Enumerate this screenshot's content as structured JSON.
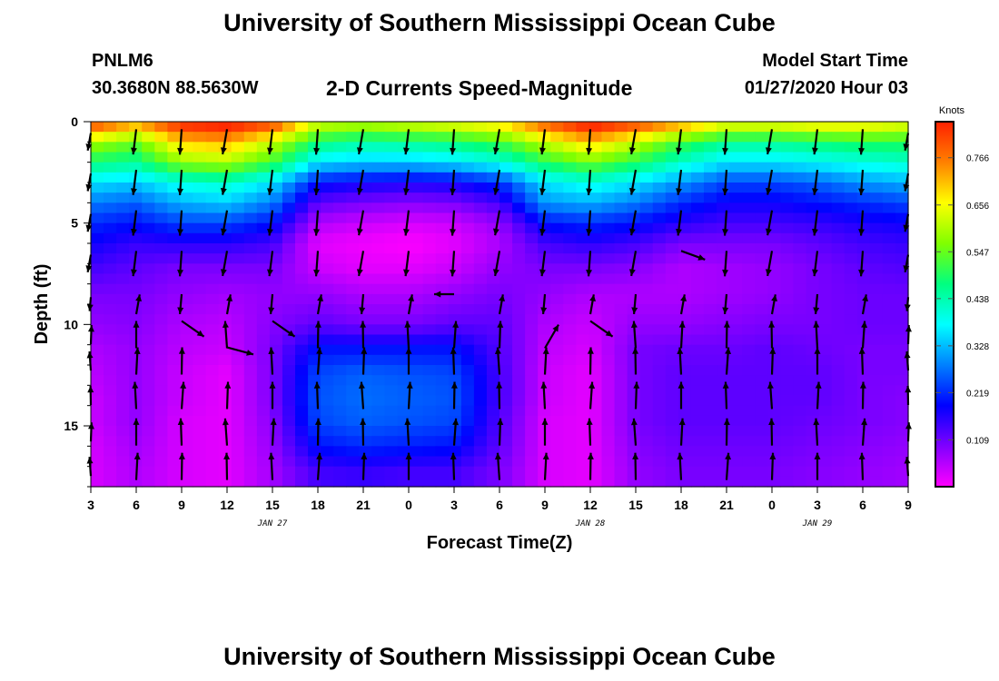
{
  "header": {
    "title": "University of Southern Mississippi Ocean Cube",
    "station": "PNLM6",
    "coords": "30.3680N 88.5630W",
    "subtitle": "2-D Currents Speed-Magnitude",
    "start_label": "Model Start Time",
    "start_value": "01/27/2020 Hour 03"
  },
  "footer": {
    "title": "University of Southern Mississippi Ocean Cube"
  },
  "chart_data": {
    "type": "heatmap",
    "title": "2-D Currents Speed-Magnitude",
    "xlabel": "Forecast Time(Z)",
    "ylabel": "Depth (ft)",
    "x_tick_labels": [
      "3",
      "6",
      "9",
      "12",
      "15",
      "18",
      "21",
      "0",
      "3",
      "6",
      "9",
      "12",
      "15",
      "18",
      "21",
      "0",
      "3",
      "6",
      "9"
    ],
    "date_labels": [
      {
        "label": "JAN 27",
        "after_tick": 4
      },
      {
        "label": "JAN 28",
        "after_tick": 11
      },
      {
        "label": "JAN 29",
        "after_tick": 16
      }
    ],
    "y_ticks": [
      0,
      5,
      10,
      15
    ],
    "ylim": [
      0,
      18
    ],
    "y_inverted": true,
    "colorbar": {
      "unit": "Knots",
      "ticks": [
        "0.766",
        "0.656",
        "0.547",
        "0.438",
        "0.328",
        "0.219",
        "0.109"
      ],
      "tick_values": [
        0.766,
        0.656,
        0.547,
        0.438,
        0.328,
        0.219,
        0.109
      ],
      "range": [
        0,
        0.85
      ],
      "colors": [
        "#ff00ff",
        "#8000ff",
        "#0000ff",
        "#0080ff",
        "#00ffff",
        "#00ff80",
        "#80ff00",
        "#ffff00",
        "#ff8000",
        "#ff2000"
      ]
    },
    "depth_levels": [
      0.3,
      1.0,
      2.0,
      3.0,
      4.0,
      5.0,
      6.0,
      7.2,
      8.5,
      10.0,
      11.2,
      12.4,
      13.6,
      14.8,
      16.0,
      17.2
    ],
    "surface_speed_by_time": [
      0.78,
      0.7,
      0.82,
      0.84,
      0.78,
      0.6,
      0.58,
      0.6,
      0.62,
      0.65,
      0.76,
      0.84,
      0.78,
      0.7,
      0.62,
      0.62,
      0.64,
      0.64,
      0.62
    ],
    "speed_grid_knots": [
      [
        0.78,
        0.7,
        0.82,
        0.84,
        0.78,
        0.6,
        0.58,
        0.6,
        0.62,
        0.65,
        0.76,
        0.84,
        0.78,
        0.7,
        0.62,
        0.62,
        0.64,
        0.64,
        0.62
      ],
      [
        0.6,
        0.55,
        0.7,
        0.72,
        0.62,
        0.48,
        0.45,
        0.46,
        0.48,
        0.52,
        0.62,
        0.7,
        0.62,
        0.52,
        0.46,
        0.46,
        0.48,
        0.5,
        0.5
      ],
      [
        0.48,
        0.46,
        0.58,
        0.6,
        0.52,
        0.36,
        0.34,
        0.34,
        0.36,
        0.4,
        0.5,
        0.56,
        0.5,
        0.42,
        0.36,
        0.36,
        0.38,
        0.4,
        0.42
      ],
      [
        0.36,
        0.34,
        0.4,
        0.42,
        0.36,
        0.2,
        0.18,
        0.17,
        0.18,
        0.22,
        0.36,
        0.4,
        0.36,
        0.3,
        0.24,
        0.24,
        0.26,
        0.3,
        0.32
      ],
      [
        0.28,
        0.26,
        0.32,
        0.34,
        0.28,
        0.12,
        0.1,
        0.09,
        0.1,
        0.14,
        0.3,
        0.32,
        0.28,
        0.22,
        0.18,
        0.18,
        0.2,
        0.22,
        0.24
      ],
      [
        0.22,
        0.2,
        0.24,
        0.24,
        0.2,
        0.06,
        0.04,
        0.03,
        0.04,
        0.08,
        0.2,
        0.22,
        0.2,
        0.16,
        0.14,
        0.14,
        0.15,
        0.17,
        0.18
      ],
      [
        0.18,
        0.15,
        0.16,
        0.16,
        0.14,
        0.02,
        0.01,
        0.0,
        0.02,
        0.06,
        0.14,
        0.16,
        0.14,
        0.1,
        0.1,
        0.1,
        0.12,
        0.14,
        0.15
      ],
      [
        0.14,
        0.12,
        0.1,
        0.1,
        0.1,
        0.04,
        0.02,
        0.02,
        0.04,
        0.08,
        0.1,
        0.1,
        0.09,
        0.06,
        0.07,
        0.08,
        0.1,
        0.12,
        0.13
      ],
      [
        0.1,
        0.1,
        0.08,
        0.07,
        0.08,
        0.08,
        0.06,
        0.06,
        0.08,
        0.1,
        0.08,
        0.06,
        0.06,
        0.06,
        0.07,
        0.08,
        0.1,
        0.11,
        0.11
      ],
      [
        0.08,
        0.09,
        0.06,
        0.05,
        0.09,
        0.12,
        0.1,
        0.1,
        0.12,
        0.12,
        0.06,
        0.04,
        0.08,
        0.08,
        0.09,
        0.1,
        0.1,
        0.11,
        0.11
      ],
      [
        0.06,
        0.08,
        0.05,
        0.04,
        0.1,
        0.2,
        0.2,
        0.2,
        0.2,
        0.13,
        0.05,
        0.03,
        0.1,
        0.11,
        0.11,
        0.12,
        0.11,
        0.1,
        0.1
      ],
      [
        0.05,
        0.08,
        0.04,
        0.02,
        0.1,
        0.24,
        0.26,
        0.25,
        0.24,
        0.14,
        0.04,
        0.02,
        0.1,
        0.12,
        0.12,
        0.12,
        0.12,
        0.1,
        0.1
      ],
      [
        0.04,
        0.08,
        0.04,
        0.02,
        0.1,
        0.25,
        0.27,
        0.26,
        0.25,
        0.14,
        0.04,
        0.02,
        0.1,
        0.12,
        0.12,
        0.12,
        0.12,
        0.1,
        0.09
      ],
      [
        0.04,
        0.08,
        0.03,
        0.02,
        0.09,
        0.24,
        0.26,
        0.25,
        0.24,
        0.13,
        0.03,
        0.02,
        0.1,
        0.12,
        0.12,
        0.12,
        0.11,
        0.1,
        0.09
      ],
      [
        0.03,
        0.07,
        0.03,
        0.02,
        0.08,
        0.2,
        0.22,
        0.21,
        0.2,
        0.12,
        0.03,
        0.02,
        0.09,
        0.11,
        0.11,
        0.11,
        0.1,
        0.09,
        0.08
      ],
      [
        0.03,
        0.06,
        0.03,
        0.02,
        0.07,
        0.14,
        0.15,
        0.14,
        0.14,
        0.1,
        0.03,
        0.02,
        0.08,
        0.1,
        0.1,
        0.1,
        0.09,
        0.08,
        0.07
      ]
    ]
  }
}
